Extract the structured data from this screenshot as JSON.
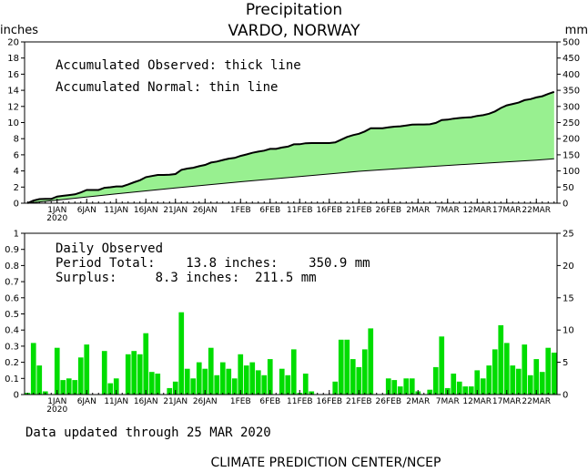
{
  "header": {
    "title": "Precipitation",
    "subtitle": "VARDO, NORWAY",
    "left_unit": "inches",
    "right_unit": "mm"
  },
  "notes": {
    "observed": "Accumulated Observed: thick line",
    "normal": "Accumulated Normal: thin line",
    "daily_title": "Daily Observed",
    "period_total": "Period Total:    13.8 inches:    350.9 mm",
    "surplus": "Surplus:     8.3 inches:  211.5 mm"
  },
  "footer": {
    "updated": "Data updated through 25 MAR 2020",
    "credit": "CLIMATE PREDICTION CENTER/NCEP"
  },
  "colors": {
    "observed_fill": "#98f090",
    "daily_bar": "#00dd00",
    "line": "#000000"
  },
  "x_axis": {
    "start": "2019-12-27",
    "end": "2020-03-25",
    "tick_labels": [
      "1JAN",
      "6JAN",
      "11JAN",
      "16JAN",
      "21JAN",
      "26JAN",
      "1FEB",
      "6FEB",
      "11FEB",
      "16FEB",
      "21FEB",
      "26FEB",
      "2MAR",
      "7MAR",
      "12MAR",
      "17MAR",
      "22MAR"
    ],
    "tick_dates": [
      "2020-01-01",
      "2020-01-06",
      "2020-01-11",
      "2020-01-16",
      "2020-01-21",
      "2020-01-26",
      "2020-02-01",
      "2020-02-06",
      "2020-02-11",
      "2020-02-16",
      "2020-02-21",
      "2020-02-26",
      "2020-03-02",
      "2020-03-07",
      "2020-03-12",
      "2020-03-17",
      "2020-03-22"
    ],
    "year_label": "2020"
  },
  "chart_data": [
    {
      "type": "area",
      "title": "Precipitation",
      "subtitle": "VARDO, NORWAY",
      "ylabel": "inches",
      "ylabel_right": "mm",
      "ylim": [
        0,
        20
      ],
      "ylim_right": [
        0,
        500
      ],
      "yticks": [
        0,
        2,
        4,
        6,
        8,
        10,
        12,
        14,
        16,
        18,
        20
      ],
      "yticks_right": [
        0,
        50,
        100,
        150,
        200,
        250,
        300,
        350,
        400,
        450,
        500
      ],
      "grid": false,
      "series": [
        {
          "name": "Accumulated Observed",
          "style": "thick line",
          "x": [
            "2019-12-27",
            "2019-12-28",
            "2019-12-29",
            "2019-12-30",
            "2019-12-31",
            "2020-01-01",
            "2020-01-02",
            "2020-01-03",
            "2020-01-04",
            "2020-01-05",
            "2020-01-06",
            "2020-01-07",
            "2020-01-08",
            "2020-01-09",
            "2020-01-10",
            "2020-01-11",
            "2020-01-12",
            "2020-01-13",
            "2020-01-14",
            "2020-01-15",
            "2020-01-16",
            "2020-01-17",
            "2020-01-18",
            "2020-01-19",
            "2020-01-20",
            "2020-01-21",
            "2020-01-22",
            "2020-01-23",
            "2020-01-24",
            "2020-01-25",
            "2020-01-26",
            "2020-01-27",
            "2020-01-28",
            "2020-01-29",
            "2020-01-30",
            "2020-01-31",
            "2020-02-01",
            "2020-02-02",
            "2020-02-03",
            "2020-02-04",
            "2020-02-05",
            "2020-02-06",
            "2020-02-07",
            "2020-02-08",
            "2020-02-09",
            "2020-02-10",
            "2020-02-11",
            "2020-02-12",
            "2020-02-13",
            "2020-02-14",
            "2020-02-15",
            "2020-02-16",
            "2020-02-17",
            "2020-02-18",
            "2020-02-19",
            "2020-02-20",
            "2020-02-21",
            "2020-02-22",
            "2020-02-23",
            "2020-02-24",
            "2020-02-25",
            "2020-02-26",
            "2020-02-27",
            "2020-02-28",
            "2020-02-29",
            "2020-03-01",
            "2020-03-02",
            "2020-03-03",
            "2020-03-04",
            "2020-03-05",
            "2020-03-06",
            "2020-03-07",
            "2020-03-08",
            "2020-03-09",
            "2020-03-10",
            "2020-03-11",
            "2020-03-12",
            "2020-03-13",
            "2020-03-14",
            "2020-03-15",
            "2020-03-16",
            "2020-03-17",
            "2020-03-18",
            "2020-03-19",
            "2020-03-20",
            "2020-03-21",
            "2020-03-22",
            "2020-03-23",
            "2020-03-24",
            "2020-03-25"
          ],
          "values": [
            0.01,
            0.33,
            0.51,
            0.53,
            0.53,
            0.82,
            0.91,
            1.01,
            1.1,
            1.33,
            1.64,
            1.64,
            1.64,
            1.91,
            1.98,
            2.08,
            2.08,
            2.33,
            2.6,
            2.85,
            3.23,
            3.37,
            3.5,
            3.5,
            3.54,
            3.62,
            4.13,
            4.29,
            4.39,
            4.59,
            4.75,
            5.04,
            5.16,
            5.36,
            5.52,
            5.62,
            5.87,
            6.05,
            6.25,
            6.4,
            6.52,
            6.74,
            6.74,
            6.9,
            7.02,
            7.3,
            7.31,
            7.44,
            7.46,
            7.46,
            7.46,
            7.46,
            7.54,
            7.88,
            8.22,
            8.44,
            8.61,
            8.89,
            9.3,
            9.3,
            9.3,
            9.4,
            9.49,
            9.54,
            9.64,
            9.74,
            9.76,
            9.76,
            9.79,
            9.96,
            10.32,
            10.36,
            10.49,
            10.57,
            10.62,
            10.67,
            10.82,
            10.92,
            11.1,
            11.38,
            11.81,
            12.13,
            12.31,
            12.47,
            12.78,
            12.9,
            13.12,
            13.26,
            13.55,
            13.81
          ]
        },
        {
          "name": "Accumulated Normal",
          "style": "thin line",
          "x": [
            "2019-12-27",
            "2020-01-01",
            "2020-01-11",
            "2020-01-21",
            "2020-02-01",
            "2020-02-11",
            "2020-02-21",
            "2020-03-02",
            "2020-03-12",
            "2020-03-22",
            "2020-03-25"
          ],
          "values": [
            0.0,
            0.38,
            1.15,
            1.9,
            2.65,
            3.3,
            3.95,
            4.45,
            4.9,
            5.35,
            5.5
          ]
        }
      ]
    },
    {
      "type": "bar",
      "title": "Daily Observed",
      "ylabel": "inches",
      "ylabel_right": "mm",
      "ylim": [
        0,
        1
      ],
      "ylim_right": [
        0,
        25
      ],
      "yticks": [
        0,
        0.1,
        0.2,
        0.3,
        0.4,
        0.5,
        0.6,
        0.7,
        0.8,
        0.9,
        1
      ],
      "yticks_right": [
        0,
        5,
        10,
        15,
        20,
        25
      ],
      "grid": false,
      "series": [
        {
          "name": "Daily Observed",
          "x": [
            "2019-12-27",
            "2019-12-28",
            "2019-12-29",
            "2019-12-30",
            "2019-12-31",
            "2020-01-01",
            "2020-01-02",
            "2020-01-03",
            "2020-01-04",
            "2020-01-05",
            "2020-01-06",
            "2020-01-07",
            "2020-01-08",
            "2020-01-09",
            "2020-01-10",
            "2020-01-11",
            "2020-01-12",
            "2020-01-13",
            "2020-01-14",
            "2020-01-15",
            "2020-01-16",
            "2020-01-17",
            "2020-01-18",
            "2020-01-19",
            "2020-01-20",
            "2020-01-21",
            "2020-01-22",
            "2020-01-23",
            "2020-01-24",
            "2020-01-25",
            "2020-01-26",
            "2020-01-27",
            "2020-01-28",
            "2020-01-29",
            "2020-01-30",
            "2020-01-31",
            "2020-02-01",
            "2020-02-02",
            "2020-02-03",
            "2020-02-04",
            "2020-02-05",
            "2020-02-06",
            "2020-02-07",
            "2020-02-08",
            "2020-02-09",
            "2020-02-10",
            "2020-02-11",
            "2020-02-12",
            "2020-02-13",
            "2020-02-14",
            "2020-02-15",
            "2020-02-16",
            "2020-02-17",
            "2020-02-18",
            "2020-02-19",
            "2020-02-20",
            "2020-02-21",
            "2020-02-22",
            "2020-02-23",
            "2020-02-24",
            "2020-02-25",
            "2020-02-26",
            "2020-02-27",
            "2020-02-28",
            "2020-02-29",
            "2020-03-01",
            "2020-03-02",
            "2020-03-03",
            "2020-03-04",
            "2020-03-05",
            "2020-03-06",
            "2020-03-07",
            "2020-03-08",
            "2020-03-09",
            "2020-03-10",
            "2020-03-11",
            "2020-03-12",
            "2020-03-13",
            "2020-03-14",
            "2020-03-15",
            "2020-03-16",
            "2020-03-17",
            "2020-03-18",
            "2020-03-19",
            "2020-03-20",
            "2020-03-21",
            "2020-03-22",
            "2020-03-23",
            "2020-03-24",
            "2020-03-25"
          ],
          "values": [
            0.01,
            0.32,
            0.18,
            0.02,
            0.0,
            0.29,
            0.09,
            0.1,
            0.09,
            0.23,
            0.31,
            0.0,
            0.0,
            0.27,
            0.07,
            0.1,
            0.0,
            0.25,
            0.27,
            0.25,
            0.38,
            0.14,
            0.13,
            0.0,
            0.04,
            0.08,
            0.51,
            0.16,
            0.1,
            0.2,
            0.16,
            0.29,
            0.12,
            0.2,
            0.16,
            0.1,
            0.25,
            0.18,
            0.2,
            0.15,
            0.12,
            0.22,
            0.0,
            0.16,
            0.12,
            0.28,
            0.01,
            0.13,
            0.02,
            0.0,
            0.0,
            0.0,
            0.08,
            0.34,
            0.34,
            0.22,
            0.17,
            0.28,
            0.41,
            0.0,
            0.0,
            0.1,
            0.09,
            0.05,
            0.1,
            0.1,
            0.02,
            0.0,
            0.03,
            0.17,
            0.36,
            0.04,
            0.13,
            0.08,
            0.05,
            0.05,
            0.15,
            0.1,
            0.18,
            0.28,
            0.43,
            0.32,
            0.18,
            0.16,
            0.31,
            0.12,
            0.22,
            0.14,
            0.29,
            0.26
          ]
        }
      ]
    }
  ]
}
